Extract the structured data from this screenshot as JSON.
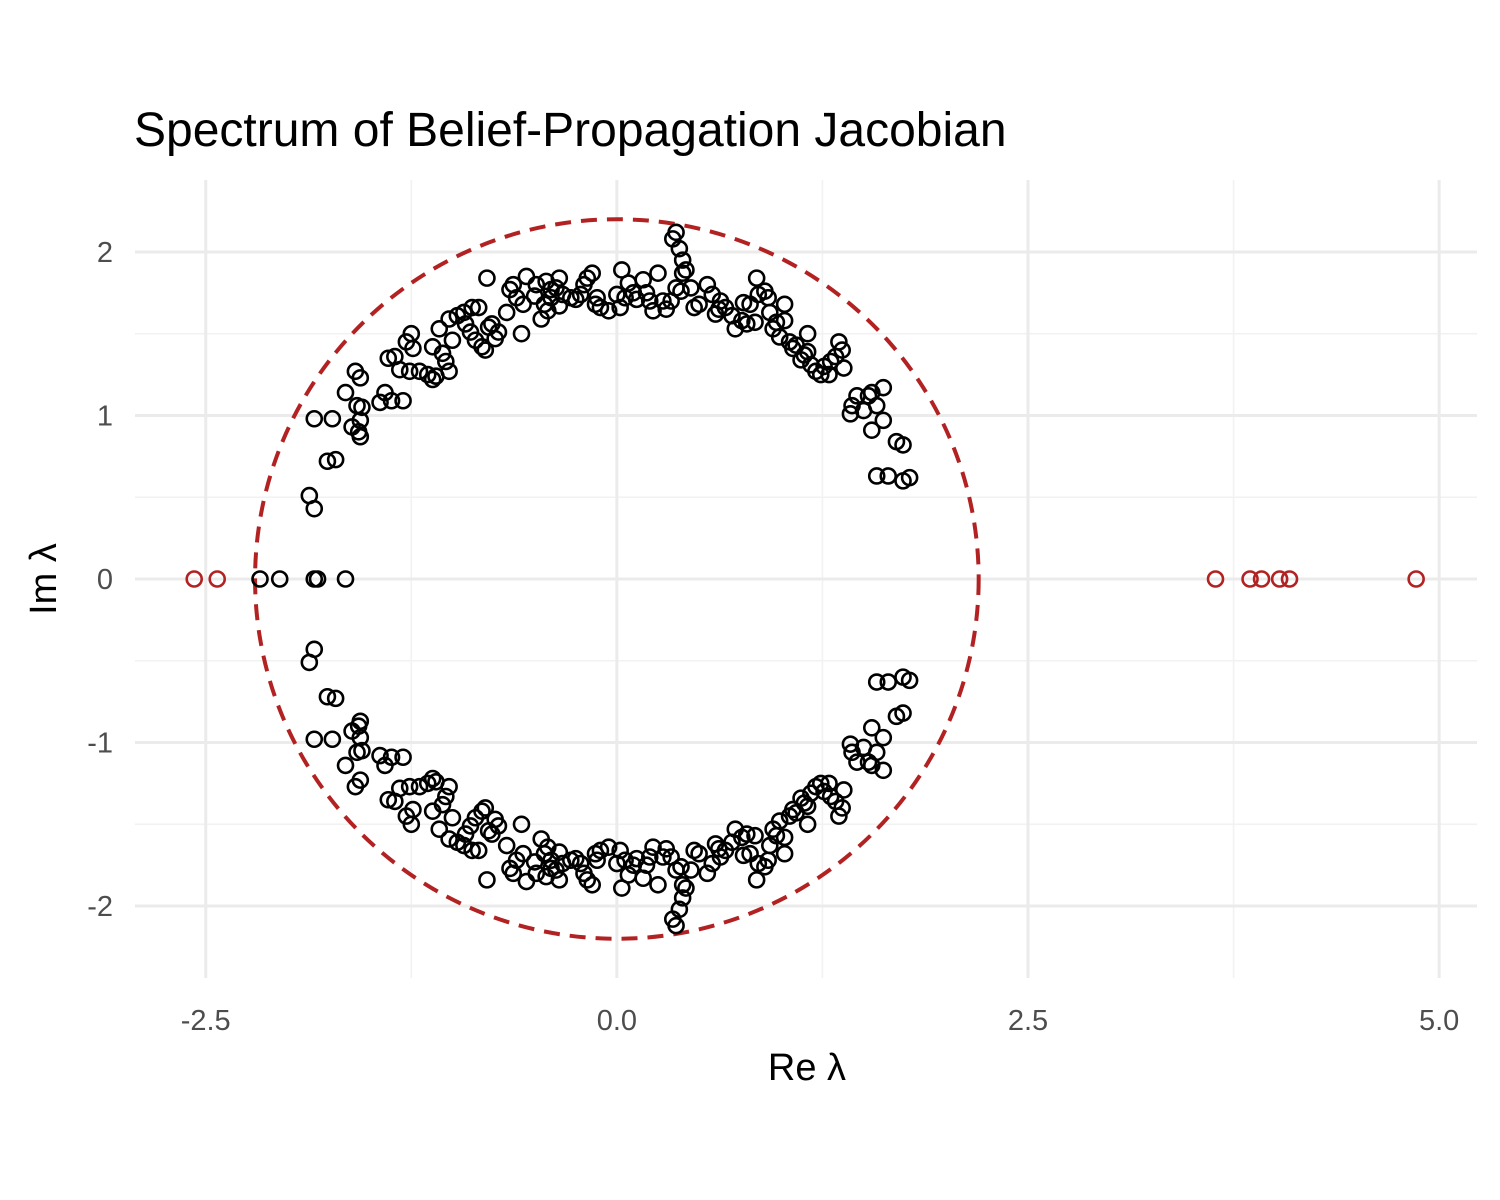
{
  "chart_data": {
    "type": "scatter",
    "title": "Spectrum of Belief-Propagation Jacobian",
    "xlabel": "Re λ",
    "ylabel": "Im λ",
    "xlim": [
      -2.93,
      5.23
    ],
    "ylim": [
      -2.44,
      2.44
    ],
    "x_ticks": [
      -2.5,
      0.0,
      2.5,
      5.0
    ],
    "x_tick_labels": [
      "-2.5",
      "0.0",
      "2.5",
      "5.0"
    ],
    "y_ticks": [
      -2,
      -1,
      0,
      1,
      2
    ],
    "y_tick_labels": [
      "-2",
      "-1",
      "0",
      "1",
      "2"
    ],
    "grid": true,
    "legend": "none",
    "colors": {
      "bulk": "#000000",
      "outlier": "#b22222",
      "circle": "#b22222"
    },
    "reference_circle": {
      "center": [
        0,
        0
      ],
      "radius": 2.2,
      "style": "dashed"
    },
    "series": [
      {
        "role": "bulk",
        "conjugate_symmetric": true,
        "upper_half": [
          [
            -1.87,
            0.51
          ],
          [
            -1.84,
            0.43
          ],
          [
            -1.84,
            0.98
          ],
          [
            -1.76,
            0.72
          ],
          [
            -1.71,
            0.73
          ],
          [
            -1.73,
            0.98
          ],
          [
            -1.65,
            1.14
          ],
          [
            -1.61,
            0.93
          ],
          [
            -1.59,
            1.27
          ],
          [
            -1.57,
            0.9
          ],
          [
            -1.56,
            0.87
          ],
          [
            -1.58,
            1.06
          ],
          [
            -1.55,
            1.05
          ],
          [
            -1.56,
            0.97
          ],
          [
            -1.56,
            1.23
          ],
          [
            -1.44,
            1.08
          ],
          [
            -1.41,
            1.14
          ],
          [
            -1.39,
            1.35
          ],
          [
            -1.37,
            1.09
          ],
          [
            -1.35,
            1.36
          ],
          [
            -1.32,
            1.28
          ],
          [
            -1.3,
            1.09
          ],
          [
            -1.26,
            1.27
          ],
          [
            -1.28,
            1.45
          ],
          [
            -1.25,
            1.5
          ],
          [
            -1.24,
            1.41
          ],
          [
            -1.2,
            1.27
          ],
          [
            -1.15,
            1.25
          ],
          [
            -1.12,
            1.22
          ],
          [
            -1.1,
            1.24
          ],
          [
            -1.12,
            1.42
          ],
          [
            -1.08,
            1.53
          ],
          [
            -1.06,
            1.38
          ],
          [
            -1.04,
            1.33
          ],
          [
            -1.02,
            1.59
          ],
          [
            -1.0,
            1.46
          ],
          [
            -1.02,
            1.27
          ],
          [
            -0.97,
            1.61
          ],
          [
            -0.93,
            1.63
          ],
          [
            -0.92,
            1.56
          ],
          [
            -0.89,
            1.51
          ],
          [
            -0.86,
            1.46
          ],
          [
            -0.88,
            1.66
          ],
          [
            -0.84,
            1.66
          ],
          [
            -0.82,
            1.42
          ],
          [
            -0.8,
            1.4
          ],
          [
            -0.78,
            1.54
          ],
          [
            -0.76,
            1.56
          ],
          [
            -0.79,
            1.84
          ],
          [
            -0.74,
            1.47
          ],
          [
            -0.72,
            1.51
          ],
          [
            -0.67,
            1.63
          ],
          [
            -0.65,
            1.77
          ],
          [
            -0.63,
            1.8
          ],
          [
            -0.61,
            1.72
          ],
          [
            -0.58,
            1.5
          ],
          [
            -0.57,
            1.68
          ],
          [
            -0.55,
            1.85
          ],
          [
            -0.5,
            1.73
          ],
          [
            -0.49,
            1.8
          ],
          [
            -0.46,
            1.59
          ],
          [
            -0.44,
            1.68
          ],
          [
            -0.43,
            1.82
          ],
          [
            -0.4,
            1.72
          ],
          [
            -0.42,
            1.64
          ],
          [
            -0.4,
            1.77
          ],
          [
            -0.37,
            1.78
          ],
          [
            -0.35,
            1.67
          ],
          [
            -0.35,
            1.84
          ],
          [
            -0.33,
            1.74
          ],
          [
            -0.28,
            1.72
          ],
          [
            -0.25,
            1.71
          ],
          [
            -0.22,
            1.74
          ],
          [
            -0.2,
            1.8
          ],
          [
            -0.18,
            1.84
          ],
          [
            -0.15,
            1.87
          ],
          [
            -0.13,
            1.68
          ],
          [
            -0.12,
            1.72
          ],
          [
            -0.1,
            1.66
          ],
          [
            -0.05,
            1.64
          ],
          [
            0.0,
            1.74
          ],
          [
            0.02,
            1.66
          ],
          [
            0.05,
            1.72
          ],
          [
            0.03,
            1.89
          ],
          [
            0.07,
            1.81
          ],
          [
            0.1,
            1.75
          ],
          [
            0.12,
            1.71
          ],
          [
            0.16,
            1.83
          ],
          [
            0.18,
            1.75
          ],
          [
            0.2,
            1.7
          ],
          [
            0.22,
            1.64
          ],
          [
            0.25,
            1.87
          ],
          [
            0.28,
            1.7
          ],
          [
            0.3,
            1.65
          ],
          [
            0.33,
            1.7
          ],
          [
            0.36,
            1.78
          ],
          [
            0.39,
            1.76
          ],
          [
            0.4,
            1.87
          ],
          [
            0.42,
            1.89
          ],
          [
            0.45,
            1.78
          ],
          [
            0.47,
            1.66
          ],
          [
            0.5,
            1.68
          ],
          [
            0.55,
            1.8
          ],
          [
            0.58,
            1.74
          ],
          [
            0.6,
            1.62
          ],
          [
            0.62,
            1.65
          ],
          [
            0.63,
            1.7
          ],
          [
            0.66,
            1.66
          ],
          [
            0.7,
            1.61
          ],
          [
            0.34,
            2.08
          ],
          [
            0.36,
            2.12
          ],
          [
            0.38,
            2.02
          ],
          [
            0.4,
            1.95
          ],
          [
            0.72,
            1.53
          ],
          [
            0.76,
            1.58
          ],
          [
            0.77,
            1.69
          ],
          [
            0.79,
            1.56
          ],
          [
            0.81,
            1.68
          ],
          [
            0.84,
            1.57
          ],
          [
            0.86,
            1.74
          ],
          [
            0.9,
            1.76
          ],
          [
            0.92,
            1.72
          ],
          [
            0.93,
            1.63
          ],
          [
            0.95,
            1.53
          ],
          [
            0.97,
            1.57
          ],
          [
            0.99,
            1.48
          ],
          [
            1.02,
            1.58
          ],
          [
            1.05,
            1.45
          ],
          [
            1.07,
            1.41
          ],
          [
            1.09,
            1.43
          ],
          [
            1.12,
            1.34
          ],
          [
            1.14,
            1.37
          ],
          [
            1.16,
            1.5
          ],
          [
            1.18,
            1.31
          ],
          [
            0.85,
            1.84
          ],
          [
            1.02,
            1.68
          ],
          [
            1.16,
            1.39
          ],
          [
            1.21,
            1.27
          ],
          [
            1.24,
            1.25
          ],
          [
            1.26,
            1.3
          ],
          [
            1.29,
            1.25
          ],
          [
            1.3,
            1.33
          ],
          [
            1.33,
            1.36
          ],
          [
            1.37,
            1.4
          ],
          [
            1.35,
            1.45
          ],
          [
            1.38,
            1.29
          ],
          [
            1.43,
            1.06
          ],
          [
            1.46,
            1.12
          ],
          [
            1.42,
            1.01
          ],
          [
            1.5,
            1.03
          ],
          [
            1.53,
            1.12
          ],
          [
            1.55,
            1.14
          ],
          [
            1.55,
            0.91
          ],
          [
            1.58,
            1.06
          ],
          [
            1.62,
            1.17
          ],
          [
            1.62,
            0.97
          ],
          [
            1.58,
            0.63
          ],
          [
            1.65,
            0.63
          ],
          [
            1.7,
            0.84
          ],
          [
            1.74,
            0.82
          ],
          [
            1.74,
            0.6
          ],
          [
            1.78,
            0.62
          ]
        ]
      },
      {
        "role": "bulk_real",
        "points": [
          [
            -2.17,
            0
          ],
          [
            -2.05,
            0
          ],
          [
            -1.84,
            0
          ],
          [
            -1.82,
            0
          ],
          [
            -1.65,
            0
          ]
        ]
      },
      {
        "role": "outlier",
        "points": [
          [
            -2.57,
            0
          ],
          [
            -2.43,
            0
          ],
          [
            3.64,
            0
          ],
          [
            3.85,
            0
          ],
          [
            3.92,
            0
          ],
          [
            4.03,
            0
          ],
          [
            4.09,
            0
          ],
          [
            4.86,
            0
          ]
        ]
      }
    ]
  }
}
